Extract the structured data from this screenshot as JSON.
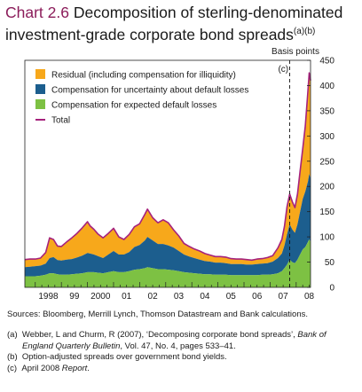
{
  "title": {
    "number": "Chart 2.6",
    "text": "Decomposition of sterling-denominated investment-grade corporate bond spreads",
    "notes_ref": "(a)(b)"
  },
  "chart_data": {
    "type": "area",
    "stacked": true,
    "y_axis_label": "Basis points",
    "ylim": [
      0,
      450
    ],
    "y_ticks": [
      0,
      50,
      100,
      150,
      200,
      250,
      300,
      350,
      400,
      450
    ],
    "y_axis_position": "right",
    "x_ticks": [
      "1998",
      "99",
      "2000",
      "01",
      "02",
      "03",
      "04",
      "05",
      "06",
      "07",
      "08"
    ],
    "x_range": [
      1997.6,
      2008.55
    ],
    "legend_placement": "top-left",
    "annotation": {
      "label": "(c)",
      "x": 2007.75,
      "style": "dashed vertical line"
    },
    "x": [
      1997.6,
      1997.8,
      1998.0,
      1998.2,
      1998.4,
      1998.55,
      1998.7,
      1998.85,
      1999.0,
      1999.2,
      1999.4,
      1999.6,
      1999.8,
      2000.0,
      2000.1,
      2000.25,
      2000.4,
      2000.6,
      2000.8,
      2001.0,
      2001.2,
      2001.4,
      2001.6,
      2001.8,
      2002.0,
      2002.2,
      2002.3,
      2002.5,
      2002.7,
      2002.9,
      2003.1,
      2003.3,
      2003.5,
      2003.7,
      2003.9,
      2004.1,
      2004.3,
      2004.5,
      2004.7,
      2004.9,
      2005.1,
      2005.3,
      2005.5,
      2005.7,
      2005.9,
      2006.1,
      2006.3,
      2006.5,
      2006.7,
      2006.9,
      2007.1,
      2007.3,
      2007.45,
      2007.55,
      2007.65,
      2007.75,
      2007.85,
      2007.95,
      2008.05,
      2008.15,
      2008.25,
      2008.35,
      2008.45,
      2008.5,
      2008.55
    ],
    "series": [
      {
        "name": "Residual (including compensation for illiquidity)",
        "color": "#f7a81b",
        "values": [
          15,
          15,
          14,
          15,
          22,
          40,
          35,
          28,
          28,
          35,
          42,
          48,
          55,
          62,
          55,
          50,
          44,
          40,
          42,
          45,
          35,
          30,
          35,
          40,
          42,
          52,
          55,
          45,
          42,
          48,
          45,
          35,
          30,
          22,
          20,
          18,
          17,
          15,
          13,
          12,
          12,
          12,
          11,
          10,
          10,
          10,
          9,
          10,
          10,
          11,
          12,
          20,
          28,
          38,
          55,
          60,
          55,
          50,
          60,
          80,
          100,
          130,
          180,
          200,
          195
        ]
      },
      {
        "name": "Compensation for uncertainty about default losses",
        "color": "#1c5e8e",
        "values": [
          18,
          19,
          20,
          20,
          22,
          30,
          32,
          28,
          28,
          30,
          30,
          32,
          35,
          38,
          37,
          35,
          33,
          30,
          35,
          40,
          35,
          35,
          38,
          45,
          48,
          55,
          60,
          55,
          50,
          50,
          48,
          45,
          40,
          35,
          32,
          30,
          28,
          26,
          25,
          24,
          24,
          23,
          22,
          22,
          22,
          21,
          21,
          22,
          22,
          23,
          25,
          30,
          35,
          45,
          60,
          70,
          65,
          60,
          70,
          85,
          100,
          110,
          120,
          130,
          125
        ]
      },
      {
        "name": "Compensation for expected default losses",
        "color": "#7dc143",
        "values": [
          22,
          22,
          22,
          23,
          25,
          28,
          28,
          26,
          25,
          25,
          26,
          27,
          28,
          30,
          30,
          30,
          29,
          28,
          30,
          32,
          30,
          30,
          32,
          35,
          36,
          38,
          40,
          38,
          36,
          36,
          35,
          34,
          32,
          30,
          29,
          28,
          27,
          26,
          26,
          25,
          25,
          25,
          24,
          24,
          24,
          24,
          24,
          24,
          25,
          25,
          26,
          28,
          32,
          38,
          45,
          55,
          50,
          48,
          55,
          65,
          75,
          80,
          90,
          95,
          90
        ]
      },
      {
        "name": "Total",
        "color": "#a6227c",
        "values": [
          55,
          56,
          56,
          58,
          69,
          98,
          95,
          82,
          81,
          90,
          98,
          107,
          118,
          130,
          122,
          115,
          106,
          98,
          107,
          117,
          100,
          95,
          105,
          120,
          126,
          145,
          155,
          138,
          128,
          134,
          128,
          114,
          102,
          87,
          81,
          76,
          72,
          67,
          64,
          61,
          61,
          60,
          57,
          56,
          56,
          55,
          54,
          56,
          57,
          59,
          63,
          78,
          95,
          121,
          160,
          185,
          170,
          158,
          185,
          230,
          275,
          320,
          390,
          425,
          410
        ]
      }
    ]
  },
  "source": "Sources:  Bloomberg, Merrill Lynch, Thomson Datastream and Bank calculations.",
  "notes": [
    {
      "label": "(a)",
      "pre": "Webber, L and Churm, R (2007), ‘Decomposing corporate bond spreads’, ",
      "italic": "Bank of England Quarterly Bulletin",
      "post": ", Vol. 47, No. 4, pages 533–41."
    },
    {
      "label": "(b)",
      "pre": "Option-adjusted spreads over government bond yields.",
      "italic": "",
      "post": ""
    },
    {
      "label": "(c)",
      "pre": "April 2008 ",
      "italic": "Report",
      "post": "."
    }
  ]
}
